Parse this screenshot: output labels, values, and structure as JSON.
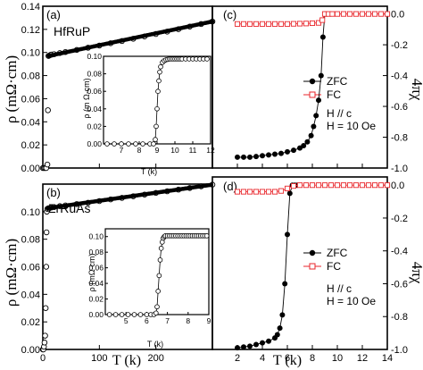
{
  "chart_data": [
    {
      "panel": "(a)",
      "type": "scatter",
      "material": "HfRuP",
      "ylabel": "ρ (mΩ·cm)",
      "xlim": [
        0,
        300
      ],
      "ylim": [
        0,
        0.14
      ],
      "yticks": [
        "0.00",
        "0.02",
        "0.04",
        "0.06",
        "0.08",
        "0.10",
        "0.12",
        "0.14"
      ],
      "series": [
        {
          "x": [
            0,
            2,
            4,
            6,
            8,
            9,
            10,
            12,
            14,
            16,
            20,
            30,
            40,
            60,
            80,
            100,
            120,
            140,
            160,
            180,
            200,
            220,
            240,
            260,
            280,
            300
          ],
          "y": [
            0.0,
            0.0,
            0.0,
            0.0,
            0.003,
            0.05,
            0.097,
            0.0975,
            0.098,
            0.0982,
            0.0985,
            0.0995,
            0.1004,
            0.1022,
            0.1041,
            0.106,
            0.108,
            0.1099,
            0.1119,
            0.1139,
            0.116,
            0.1181,
            0.1202,
            0.1224,
            0.1246,
            0.1268
          ]
        }
      ],
      "inset": {
        "xlabel": "T (k)",
        "ylabel": "ρ (m Ω·cm)",
        "xlim": [
          6,
          12
        ],
        "ylim": [
          0,
          0.1
        ],
        "xticks": [
          "7",
          "8",
          "9",
          "10",
          "11",
          "12"
        ],
        "yticks": [
          "0.00",
          "0.02",
          "0.04",
          "0.06",
          "0.08",
          "0.10"
        ],
        "x": [
          6.2,
          6.6,
          7.0,
          7.4,
          7.8,
          8.2,
          8.6,
          8.8,
          8.9,
          8.95,
          9.0,
          9.05,
          9.1,
          9.15,
          9.2,
          9.3,
          9.4,
          9.5,
          9.6,
          9.7,
          9.8,
          9.9,
          10.0,
          10.1,
          10.2,
          10.3,
          10.4,
          10.6,
          10.8,
          11.0,
          11.2,
          11.4,
          11.6,
          11.8
        ],
        "y": [
          0.0,
          0.0,
          0.0,
          0.0,
          0.0,
          0.0,
          0.0,
          0.0,
          0.005,
          0.02,
          0.04,
          0.06,
          0.072,
          0.082,
          0.088,
          0.093,
          0.095,
          0.096,
          0.0965,
          0.097,
          0.097,
          0.097,
          0.097,
          0.097,
          0.097,
          0.097,
          0.097,
          0.097,
          0.097,
          0.097,
          0.097,
          0.097,
          0.097,
          0.097
        ]
      }
    },
    {
      "panel": "(b)",
      "type": "scatter",
      "material": "ZrRuAs",
      "ylabel": "ρ (mΩ·cm)",
      "xlabel": "T (k)",
      "xlim": [
        0,
        300
      ],
      "ylim": [
        0,
        0.12
      ],
      "xticks": [
        "0",
        "100",
        "200"
      ],
      "yticks": [
        "0.00",
        "0.02",
        "0.04",
        "0.06",
        "0.08",
        "0.10"
      ],
      "series": [
        {
          "x": [
            0,
            1,
            2,
            3,
            4,
            5,
            6,
            6.5,
            7,
            8,
            10,
            15,
            20,
            30,
            40,
            60,
            80,
            100,
            120,
            140,
            160,
            180,
            200,
            220,
            240,
            260,
            280,
            300
          ],
          "y": [
            0.0,
            0.0,
            0.002,
            0.005,
            0.01,
            0.03,
            0.06,
            0.085,
            0.1,
            0.102,
            0.1025,
            0.103,
            0.1033,
            0.104,
            0.1045,
            0.1055,
            0.1065,
            0.1077,
            0.1089,
            0.11,
            0.1112,
            0.1124,
            0.1136,
            0.1148,
            0.116,
            0.1172,
            0.1184,
            0.1196
          ]
        }
      ],
      "inset": {
        "xlabel": "T (k)",
        "ylabel": "ρ (mΩ·cm)",
        "xlim": [
          4,
          9
        ],
        "ylim": [
          0,
          0.11
        ],
        "xticks": [
          "5",
          "6",
          "7",
          "8",
          "9"
        ],
        "yticks": [
          "0.00",
          "0.02",
          "0.04",
          "0.06",
          "0.08",
          "0.10"
        ],
        "x": [
          4.2,
          4.5,
          4.8,
          5.1,
          5.4,
          5.7,
          6.0,
          6.2,
          6.35,
          6.45,
          6.5,
          6.55,
          6.6,
          6.65,
          6.7,
          6.75,
          6.8,
          6.85,
          6.9,
          7.0,
          7.1,
          7.2,
          7.3,
          7.4,
          7.5,
          7.6,
          7.7,
          7.8,
          7.9,
          8.0,
          8.1,
          8.2,
          8.3,
          8.4,
          8.5,
          8.6,
          8.7,
          8.8,
          8.9
        ],
        "y": [
          0.0,
          0.0,
          0.0,
          0.0,
          0.0,
          0.0,
          0.0,
          0.0,
          0.0,
          0.002,
          0.01,
          0.03,
          0.05,
          0.07,
          0.085,
          0.093,
          0.098,
          0.1,
          0.101,
          0.101,
          0.101,
          0.101,
          0.101,
          0.101,
          0.101,
          0.101,
          0.101,
          0.101,
          0.101,
          0.101,
          0.101,
          0.101,
          0.101,
          0.101,
          0.101,
          0.101,
          0.101,
          0.101,
          0.101
        ]
      }
    },
    {
      "panel": "(c)",
      "type": "line",
      "ylabel": "4πχ",
      "xlim": [
        0,
        14
      ],
      "ylim": [
        -1.0,
        0.05
      ],
      "yticks": [
        "0.0",
        "-0.2",
        "-0.4",
        "-0.6",
        "-0.8",
        "-1.0"
      ],
      "legend": {
        "placement": "middle-right",
        "entries": [
          "ZFC",
          "FC"
        ]
      },
      "annotation": [
        "H // c",
        "H = 10 Oe"
      ],
      "series": [
        {
          "name": "ZFC",
          "x": [
            2.0,
            2.5,
            3.0,
            3.5,
            4.0,
            4.5,
            5.0,
            5.5,
            6.0,
            6.5,
            7.0,
            7.3,
            7.6,
            7.9,
            8.1,
            8.3,
            8.5,
            8.7,
            8.85,
            9.0
          ],
          "y": [
            -0.93,
            -0.93,
            -0.93,
            -0.925,
            -0.92,
            -0.915,
            -0.91,
            -0.905,
            -0.895,
            -0.885,
            -0.87,
            -0.855,
            -0.83,
            -0.79,
            -0.73,
            -0.66,
            -0.56,
            -0.4,
            -0.15,
            0.0
          ]
        },
        {
          "name": "FC",
          "x": [
            2.0,
            2.5,
            3.0,
            3.5,
            4.0,
            4.5,
            5.0,
            5.5,
            6.0,
            6.5,
            7.0,
            7.5,
            8.0,
            8.5,
            8.8,
            9.0,
            9.3,
            9.6,
            10.0,
            10.5,
            11.0,
            11.5,
            12.0,
            12.5,
            13.0,
            13.5,
            14.0
          ],
          "y": [
            -0.065,
            -0.065,
            -0.065,
            -0.065,
            -0.065,
            -0.065,
            -0.065,
            -0.065,
            -0.065,
            -0.064,
            -0.063,
            -0.062,
            -0.06,
            -0.058,
            -0.04,
            0.0,
            0.0,
            0.0,
            0.0,
            0.0,
            0.0,
            0.0,
            0.0,
            0.0,
            0.0,
            0.0,
            0.0
          ]
        }
      ]
    },
    {
      "panel": "(d)",
      "type": "line",
      "ylabel": "4πχ",
      "xlabel": "T (k)",
      "xlim": [
        0,
        14
      ],
      "ylim": [
        -1.0,
        0.05
      ],
      "xticks": [
        "2",
        "4",
        "6",
        "8",
        "10",
        "12",
        "14"
      ],
      "yticks": [
        "0.0",
        "-0.2",
        "-0.4",
        "-0.6",
        "-0.8",
        "-1.0"
      ],
      "legend": {
        "placement": "middle-right",
        "entries": [
          "ZFC",
          "FC"
        ]
      },
      "annotation": [
        "H // c",
        "H = 10 Oe"
      ],
      "series": [
        {
          "name": "ZFC",
          "x": [
            2.0,
            2.5,
            3.0,
            3.5,
            4.0,
            4.5,
            5.0,
            5.2,
            5.4,
            5.6,
            5.8,
            6.0,
            6.2,
            6.4,
            6.6,
            6.8
          ],
          "y": [
            -0.99,
            -0.985,
            -0.98,
            -0.97,
            -0.96,
            -0.95,
            -0.93,
            -0.91,
            -0.87,
            -0.79,
            -0.6,
            -0.3,
            -0.05,
            0.0,
            0.0,
            0.0
          ]
        },
        {
          "name": "FC",
          "x": [
            2.0,
            2.5,
            3.0,
            3.5,
            4.0,
            4.5,
            5.0,
            5.5,
            6.0,
            6.5,
            7.0,
            7.5,
            8.0,
            8.5,
            9.0,
            9.5,
            10.0,
            10.5,
            11.0,
            11.5,
            12.0,
            12.5,
            13.0,
            13.5,
            14.0
          ],
          "y": [
            -0.04,
            -0.04,
            -0.04,
            -0.04,
            -0.04,
            -0.04,
            -0.04,
            -0.035,
            -0.02,
            -0.005,
            0.0,
            0.0,
            0.0,
            0.0,
            0.0,
            0.0,
            0.0,
            0.0,
            0.0,
            0.0,
            0.0,
            0.0,
            0.0,
            0.0,
            0.0
          ]
        }
      ]
    }
  ],
  "colors": {
    "zfc": "#000000",
    "fc": "#e8262b",
    "axis": "#000000"
  }
}
